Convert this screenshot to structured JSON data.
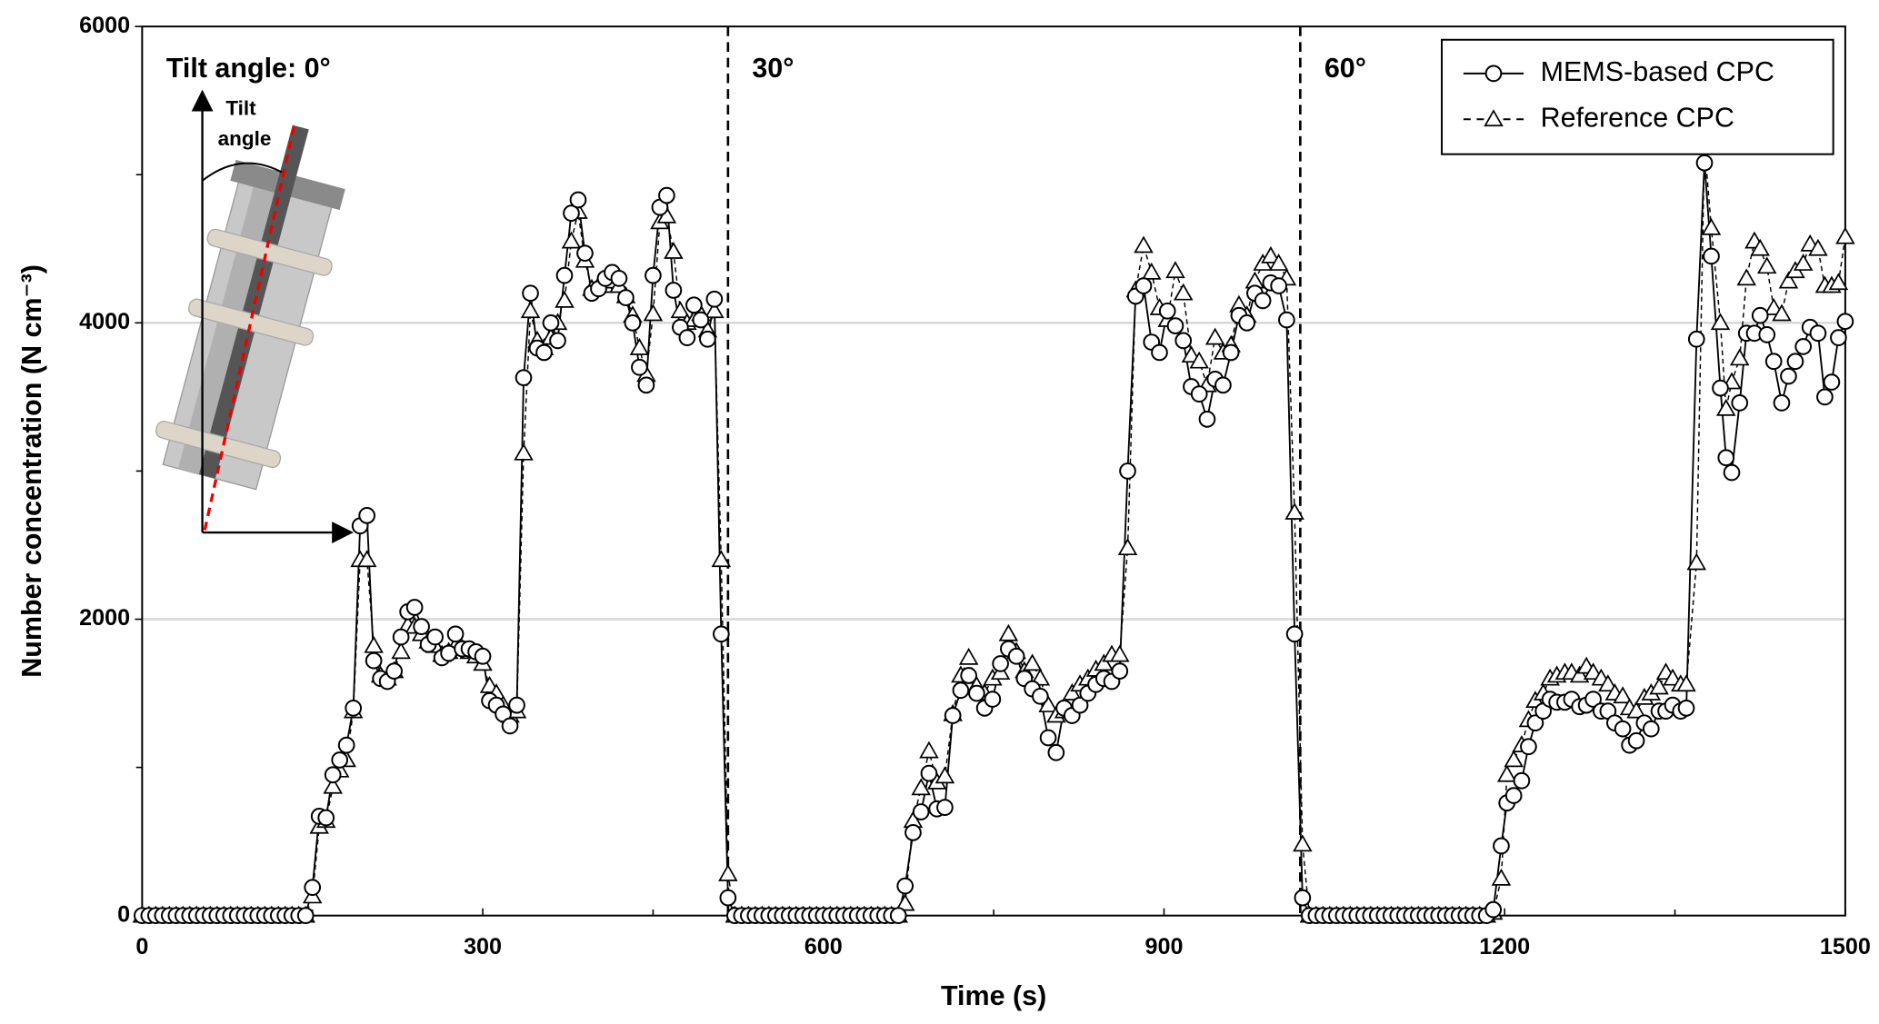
{
  "chart_data": {
    "type": "line",
    "xlabel": "Time (s)",
    "ylabel": "Number concentration (N cm⁻³)",
    "xlim": [
      0,
      1500
    ],
    "ylim": [
      0,
      6000
    ],
    "xticks": [
      0,
      300,
      600,
      900,
      1200,
      1500
    ],
    "yticks": [
      0,
      2000,
      4000,
      6000
    ],
    "xminorticks": [
      150,
      450,
      750,
      1050,
      1350
    ],
    "yminorticks": [
      1000,
      3000,
      5000
    ],
    "grid": true,
    "legend": "upper right",
    "vlines": [
      516,
      1020
    ],
    "annotations": [
      "Tilt angle: 0°",
      "30°",
      "60°"
    ],
    "inset_label": [
      "Tilt",
      "angle"
    ],
    "x": [
      0,
      6,
      12,
      18,
      24,
      30,
      36,
      42,
      48,
      54,
      60,
      66,
      72,
      78,
      84,
      90,
      96,
      102,
      108,
      114,
      120,
      126,
      132,
      138,
      144,
      150,
      156,
      162,
      168,
      174,
      180,
      186,
      192,
      198,
      204,
      210,
      216,
      222,
      228,
      234,
      240,
      246,
      252,
      258,
      264,
      270,
      276,
      282,
      288,
      294,
      300,
      306,
      312,
      318,
      324,
      330,
      336,
      342,
      348,
      354,
      360,
      366,
      372,
      378,
      384,
      390,
      396,
      402,
      408,
      414,
      420,
      426,
      432,
      438,
      444,
      450,
      456,
      462,
      468,
      474,
      480,
      486,
      492,
      498,
      504,
      510,
      516,
      522,
      528,
      534,
      540,
      546,
      552,
      558,
      564,
      570,
      576,
      582,
      588,
      594,
      600,
      606,
      612,
      618,
      624,
      630,
      636,
      642,
      648,
      654,
      660,
      666,
      672,
      679,
      686,
      693,
      700,
      707,
      714,
      721,
      728,
      735,
      742,
      749,
      756,
      763,
      770,
      777,
      784,
      791,
      798,
      805,
      812,
      819,
      826,
      833,
      840,
      847,
      854,
      861,
      868,
      875,
      882,
      889,
      896,
      903,
      910,
      917,
      924,
      931,
      938,
      945,
      952,
      959,
      966,
      973,
      980,
      987,
      994,
      1001,
      1008,
      1015,
      1022,
      1028,
      1034,
      1040,
      1046,
      1052,
      1058,
      1064,
      1070,
      1076,
      1082,
      1088,
      1094,
      1100,
      1106,
      1112,
      1118,
      1124,
      1130,
      1136,
      1142,
      1148,
      1154,
      1160,
      1166,
      1172,
      1178,
      1184,
      1190,
      1197,
      1202,
      1208,
      1215,
      1221,
      1227,
      1234,
      1240,
      1246,
      1253,
      1259,
      1266,
      1272,
      1278,
      1285,
      1291,
      1297,
      1304,
      1310,
      1316,
      1323,
      1329,
      1336,
      1342,
      1348,
      1355,
      1360,
      1369,
      1376,
      1382,
      1390,
      1395,
      1400,
      1407,
      1413,
      1420,
      1425,
      1431,
      1437,
      1444,
      1450,
      1456,
      1463,
      1469,
      1476,
      1482,
      1488,
      1494,
      1500
    ],
    "series": [
      {
        "name": "MEMS-based CPC",
        "color": "#000000",
        "marker": "circle",
        "linestyle": "solid",
        "values": [
          0,
          0,
          0,
          0,
          0,
          0,
          0,
          0,
          0,
          0,
          0,
          0,
          0,
          0,
          0,
          0,
          0,
          0,
          0,
          0,
          0,
          0,
          0,
          0,
          0,
          190,
          670,
          660,
          950,
          1050,
          1150,
          1400,
          2630,
          2700,
          1720,
          1600,
          1580,
          1650,
          1880,
          2050,
          2080,
          1950,
          1830,
          1880,
          1740,
          1770,
          1900,
          1800,
          1800,
          1780,
          1750,
          1450,
          1420,
          1360,
          1280,
          1420,
          3630,
          4200,
          3830,
          3800,
          4000,
          3880,
          4320,
          4740,
          4830,
          4470,
          4200,
          4230,
          4300,
          4340,
          4300,
          4170,
          4000,
          3700,
          3580,
          4320,
          4780,
          4860,
          4220,
          3970,
          3900,
          4120,
          4020,
          3890,
          4160,
          1900,
          120,
          0,
          0,
          0,
          0,
          0,
          0,
          0,
          0,
          0,
          0,
          0,
          0,
          0,
          0,
          0,
          0,
          0,
          0,
          0,
          0,
          0,
          0,
          0,
          0,
          0,
          200,
          560,
          700,
          960,
          720,
          730,
          1350,
          1520,
          1620,
          1500,
          1400,
          1460,
          1700,
          1800,
          1750,
          1600,
          1530,
          1480,
          1200,
          1100,
          1400,
          1350,
          1420,
          1500,
          1560,
          1600,
          1580,
          1650,
          3000,
          4180,
          4250,
          3870,
          3800,
          4080,
          3980,
          3880,
          3570,
          3520,
          3350,
          3620,
          3580,
          3800,
          4050,
          4000,
          4200,
          4150,
          4270,
          4250,
          4020,
          1900,
          120,
          0,
          0,
          0,
          0,
          0,
          0,
          0,
          0,
          0,
          0,
          0,
          0,
          0,
          0,
          0,
          0,
          0,
          0,
          0,
          0,
          0,
          0,
          0,
          0,
          0,
          0,
          0,
          40,
          470,
          760,
          810,
          910,
          1140,
          1300,
          1380,
          1460,
          1440,
          1440,
          1460,
          1410,
          1420,
          1460,
          1380,
          1380,
          1300,
          1260,
          1150,
          1180,
          1300,
          1260,
          1380,
          1380,
          1420,
          1380,
          1400,
          3890,
          5080,
          4450,
          3560,
          3090,
          2990,
          3460,
          3930,
          3930,
          4050,
          3920,
          3740,
          3460,
          3640,
          3740,
          3840,
          3970,
          3930,
          3500,
          3600,
          3900,
          4010
        ]
      },
      {
        "name": "Reference CPC",
        "color": "#000000",
        "marker": "triangle",
        "linestyle": "dashed",
        "values": [
          0,
          0,
          0,
          0,
          0,
          0,
          0,
          0,
          0,
          0,
          0,
          0,
          0,
          0,
          0,
          0,
          0,
          0,
          0,
          0,
          0,
          0,
          0,
          0,
          0,
          130,
          600,
          640,
          870,
          980,
          1050,
          1380,
          2400,
          2400,
          1820,
          1620,
          1600,
          1650,
          1780,
          1960,
          1950,
          1900,
          1850,
          1820,
          1760,
          1780,
          1820,
          1800,
          1780,
          1750,
          1700,
          1550,
          1500,
          1420,
          1350,
          1380,
          3120,
          4080,
          3880,
          3830,
          3900,
          4000,
          4150,
          4550,
          4750,
          4420,
          4230,
          4250,
          4250,
          4280,
          4250,
          4180,
          4050,
          3830,
          3650,
          4060,
          4680,
          4720,
          4480,
          4080,
          4000,
          4020,
          4060,
          3950,
          4080,
          2400,
          280,
          0,
          0,
          0,
          0,
          0,
          0,
          0,
          0,
          0,
          0,
          0,
          0,
          0,
          0,
          0,
          0,
          0,
          0,
          0,
          0,
          0,
          0,
          0,
          0,
          0,
          80,
          640,
          860,
          1110,
          900,
          940,
          1360,
          1620,
          1740,
          1550,
          1500,
          1600,
          1640,
          1900,
          1780,
          1650,
          1700,
          1600,
          1420,
          1350,
          1380,
          1500,
          1560,
          1600,
          1660,
          1700,
          1760,
          1760,
          2480,
          4220,
          4520,
          4340,
          4100,
          4020,
          4350,
          4200,
          3780,
          3740,
          3580,
          3900,
          3800,
          3850,
          4120,
          4050,
          4280,
          4400,
          4450,
          4400,
          4300,
          2720,
          480,
          0,
          0,
          0,
          0,
          0,
          0,
          0,
          0,
          0,
          0,
          0,
          0,
          0,
          0,
          0,
          0,
          0,
          0,
          0,
          0,
          0,
          0,
          0,
          0,
          0,
          0,
          0,
          20,
          250,
          950,
          1050,
          1150,
          1320,
          1450,
          1500,
          1600,
          1620,
          1640,
          1640,
          1620,
          1680,
          1640,
          1600,
          1560,
          1500,
          1480,
          1400,
          1380,
          1470,
          1500,
          1540,
          1640,
          1600,
          1560,
          1560,
          2380,
          5200,
          4640,
          4000,
          3420,
          3600,
          3760,
          4300,
          4550,
          4500,
          4380,
          4100,
          4060,
          4280,
          4350,
          4400,
          4530,
          4500,
          4250,
          4250,
          4270,
          4580
        ]
      }
    ]
  }
}
